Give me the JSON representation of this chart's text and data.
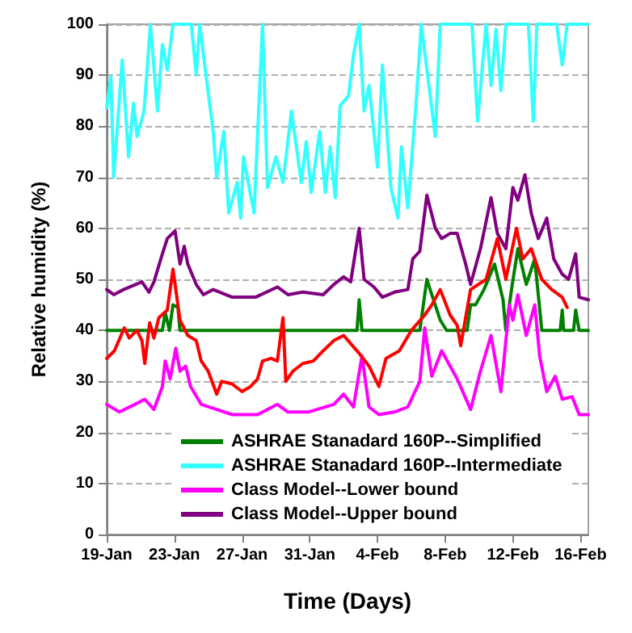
{
  "chart_data": {
    "type": "line",
    "xlabel": "Time (Days)",
    "ylabel": "Relative humidity (%)",
    "xlim": [
      "--01-19",
      "--02-16T11:00"
    ],
    "xticks": [
      {
        "value": "--01-19",
        "label": "19-Jan"
      },
      {
        "value": "--01-23",
        "label": "23-Jan"
      },
      {
        "value": "--01-27",
        "label": "27-Jan"
      },
      {
        "value": "--01-31",
        "label": "31-Jan"
      },
      {
        "value": "--02-04",
        "label": "4-Feb"
      },
      {
        "value": "--02-08",
        "label": "8-Feb"
      },
      {
        "value": "--02-12",
        "label": "12-Feb"
      },
      {
        "value": "--02-16",
        "label": "16-Feb"
      }
    ],
    "ylim": [
      0,
      100
    ],
    "yticks": [
      0,
      10,
      20,
      30,
      40,
      50,
      60,
      70,
      80,
      90,
      100
    ],
    "grid": "y",
    "legend": "bottom",
    "marker": "none",
    "line_style": "solid",
    "series": [
      {
        "name": "ASHRAE Stanadard 160P--Simplified",
        "color": "#008000",
        "x": [
          "--01-19T00:00",
          "--01-22T07:00",
          "--01-22T11:00",
          "--01-22T17:00",
          "--01-22T22:00",
          "--01-23T05:00",
          "--01-23T08:00",
          "--02-02T19:00",
          "--02-02T22:00",
          "--02-03T02:00",
          "--02-06T12:00",
          "--02-06T22:00",
          "--02-07T05:00",
          "--02-07T17:00",
          "--02-08T02:00",
          "--02-09T07:00",
          "--02-09T12:00",
          "--02-09T19:00",
          "--02-10T07:00",
          "--02-10T22:00",
          "--02-11T10:00",
          "--02-11T14:00",
          "--02-11T22:00",
          "--02-12T07:00",
          "--02-12T19:00",
          "--02-13T07:00",
          "--02-13T17:00",
          "--02-14T19:00",
          "--02-14T22:00",
          "--02-15T00:00",
          "--02-15T14:00",
          "--02-15T17:00",
          "--02-15T22:00",
          "--02-16T11:00"
        ],
        "values": [
          40,
          40,
          43.5,
          40,
          45,
          44.5,
          40,
          40,
          46,
          40,
          40,
          50,
          47,
          42,
          40,
          40,
          45,
          45,
          48,
          53,
          46,
          40,
          48,
          56,
          49,
          54,
          40,
          40,
          44,
          40,
          40,
          44,
          40,
          40
        ]
      },
      {
        "name": "ASHRAE Stanadard 160P--Intermediate",
        "color": "#33ffff",
        "x": [
          "--01-19T00:00",
          "--01-19T06:00",
          "--01-19T10:00",
          "--01-19T22:00",
          "--01-20T07:00",
          "--01-20T14:00",
          "--01-20T19:00",
          "--01-21T05:00",
          "--01-21T14:00",
          "--01-22T00:00",
          "--01-22T07:00",
          "--01-22T14:00",
          "--01-22T22:00",
          "--01-24T00:00",
          "--01-24T07:00",
          "--01-24T12:00",
          "--01-24T19:00",
          "--01-25T07:00",
          "--01-25T12:00",
          "--01-25T22:00",
          "--01-26T05:00",
          "--01-26T17:00",
          "--01-26T22:00",
          "--01-27T02:00",
          "--01-27T17:00",
          "--01-28T05:00",
          "--01-28T12:00",
          "--01-29T00:00",
          "--01-29T10:00",
          "--01-29T22:00",
          "--01-30T12:00",
          "--01-30T19:00",
          "--01-31T02:00",
          "--01-31T14:00",
          "--01-31T22:00",
          "--02-01T05:00",
          "--02-01T12:00",
          "--02-01T19:00",
          "--02-02T07:00",
          "--02-02T14:00",
          "--02-02T22:00",
          "--02-03T05:00",
          "--02-03T12:00",
          "--02-04T00:00",
          "--02-04T07:00",
          "--02-04T19:00",
          "--02-05T05:00",
          "--02-05T10:00",
          "--02-05T19:00",
          "--02-06T07:00",
          "--02-06T14:00",
          "--02-07T10:00",
          "--02-07T17:00",
          "--02-09T14:00",
          "--02-09T22:00",
          "--02-10T10:00",
          "--02-10T17:00",
          "--02-11T00:00",
          "--02-11T07:00",
          "--02-11T14:00",
          "--02-12T22:00",
          "--02-13T05:00",
          "--02-13T10:00",
          "--02-14T14:00",
          "--02-14T22:00",
          "--02-15T05:00",
          "--02-16T11:00"
        ],
        "values": [
          83.5,
          89.7,
          70,
          93,
          74,
          84.5,
          78,
          83,
          100,
          83,
          96,
          91,
          100,
          100,
          90,
          100,
          92,
          79,
          70,
          79,
          63,
          69,
          62,
          74,
          63,
          100,
          68,
          74,
          69,
          83,
          69,
          77,
          67,
          79,
          67,
          76,
          66,
          84,
          86,
          94,
          100,
          83,
          88,
          72,
          92,
          68,
          62,
          76,
          64,
          85,
          100,
          78,
          100,
          100,
          81,
          100,
          88,
          99,
          87,
          100,
          100,
          81,
          100,
          100,
          92,
          100,
          100
        ]
      },
      {
        "name": "Class Model--Lower bound",
        "color": "#ff00ff",
        "x": [
          "--01-19T00:00",
          "--01-19T18:00",
          "--01-20T16:00",
          "--01-21T06:00",
          "--01-21T19:00",
          "--01-22T07:00",
          "--01-22T11:00",
          "--01-22T18:00",
          "--01-23T02:00",
          "--01-23T08:00",
          "--01-23T16:00",
          "--01-23T23:00",
          "--01-24T14:00",
          "--01-25T12:00",
          "--01-26T10:00",
          "--01-27T22:00",
          "--01-29T02:00",
          "--01-29T17:00",
          "--01-30T22:00",
          "--02-01T10:00",
          "--02-02T00:00",
          "--02-02T14:00",
          "--02-03T02:00",
          "--02-03T12:00",
          "--02-04T02:00",
          "--02-05T00:00",
          "--02-05T19:00",
          "--02-06T12:00",
          "--02-06T19:00",
          "--02-07T05:00",
          "--02-07T19:00",
          "--02-08T07:00",
          "--02-08T17:00",
          "--02-09T12:00",
          "--02-10T02:00",
          "--02-10T17:00",
          "--02-11T07:00",
          "--02-11T19:00",
          "--02-12T00:00",
          "--02-12T07:00",
          "--02-12T19:00",
          "--02-13T07:00",
          "--02-13T14:00",
          "--02-14T00:00",
          "--02-14T12:00",
          "--02-14T22:00",
          "--02-15T12:00",
          "--02-15T22:00",
          "--02-16T11:00"
        ],
        "values": [
          25.5,
          24,
          25.5,
          26.5,
          24.5,
          29,
          34,
          30.5,
          36.5,
          32,
          33,
          29,
          25.5,
          24.5,
          23.5,
          23.5,
          25.5,
          24,
          24,
          25.5,
          27.5,
          25,
          35,
          25,
          23.5,
          24,
          25,
          30,
          40.5,
          31,
          36,
          33,
          30.5,
          24.5,
          32,
          39,
          28,
          45,
          42,
          47,
          39,
          45,
          35,
          28,
          31,
          26.5,
          27,
          23.5,
          23.5
        ]
      },
      {
        "name": "Class Model--Upper bound",
        "color": "#800080",
        "x": [
          "--01-19T00:00",
          "--01-19T10:00",
          "--01-20T00:00",
          "--01-21T02:00",
          "--01-21T12:00",
          "--01-21T19:00",
          "--01-22T07:00",
          "--01-22T14:00",
          "--01-23T01:00",
          "--01-23T08:00",
          "--01-23T14:00",
          "--01-23T19:00",
          "--01-24T07:00",
          "--01-24T17:00",
          "--01-25T07:00",
          "--01-26T10:00",
          "--01-27T19:00",
          "--01-29T02:00",
          "--01-29T17:00",
          "--01-30T14:00",
          "--01-31T19:00",
          "--02-01T10:00",
          "--02-02T00:00",
          "--02-02T10:00",
          "--02-02T22:00",
          "--02-03T05:00",
          "--02-03T19:00",
          "--02-04T07:00",
          "--02-05T00:00",
          "--02-05T19:00",
          "--02-06T02:00",
          "--02-06T12:00",
          "--02-06T22:00",
          "--02-07T10:00",
          "--02-07T19:00",
          "--02-08T07:00",
          "--02-08T17:00",
          "--02-09T05:00",
          "--02-09T12:00",
          "--02-10T02:00",
          "--02-10T17:00",
          "--02-11T02:00",
          "--02-11T14:00",
          "--02-12T00:00",
          "--02-12T07:00",
          "--02-12T17:00",
          "--02-13T02:00",
          "--02-13T12:00",
          "--02-14T00:00",
          "--02-14T10:00",
          "--02-14T22:00",
          "--02-15T07:00",
          "--02-15T17:00",
          "--02-15T22:00",
          "--02-16T11:00"
        ],
        "values": [
          48,
          47,
          48,
          49.5,
          47.5,
          49.5,
          55,
          58,
          59.5,
          53,
          56.5,
          53,
          49,
          47,
          48,
          46.5,
          46.5,
          48.5,
          47,
          47.5,
          47,
          49,
          50.5,
          49.5,
          60,
          50,
          48.5,
          46.5,
          47.5,
          48,
          54,
          55.5,
          66.5,
          60,
          58,
          59,
          59,
          53,
          49,
          56,
          66,
          59,
          56,
          68,
          65.5,
          70.5,
          63,
          58,
          62,
          54,
          51,
          50,
          55,
          46.5,
          46
        ]
      },
      {
        "color": "#ff0000",
        "x": [
          "--01-19T00:00",
          "--01-19T11:00",
          "--01-20T01:00",
          "--01-20T08:00",
          "--01-20T19:00",
          "--01-21T02:00",
          "--01-21T06:00",
          "--01-21T13:00",
          "--01-21T19:00",
          "--01-22T02:00",
          "--01-22T14:00",
          "--01-22T22:00",
          "--01-23T08:00",
          "--01-23T19:00",
          "--01-24T07:00",
          "--01-24T14:00",
          "--01-25T00:00",
          "--01-25T12:00",
          "--01-25T19:00",
          "--01-26T10:00",
          "--01-27T00:00",
          "--01-27T12:00",
          "--01-27T22:00",
          "--01-28T05:00",
          "--01-28T17:00",
          "--01-29T02:00",
          "--01-29T10:00",
          "--01-29T14:00",
          "--01-30T00:00",
          "--01-30T14:00",
          "--01-31T05:00",
          "--01-31T19:00",
          "--02-01T10:00",
          "--02-02T00:00",
          "--02-02T22:00",
          "--02-03T12:00",
          "--02-04T02:00",
          "--02-04T12:00",
          "--02-05T07:00",
          "--02-06T00:00",
          "--02-06T19:00",
          "--02-07T05:00",
          "--02-07T17:00",
          "--02-08T07:00",
          "--02-08T17:00",
          "--02-08T22:00",
          "--02-09T12:00",
          "--02-10T10:00",
          "--02-11T02:00",
          "--02-11T14:00",
          "--02-12T05:00",
          "--02-12T14:00",
          "--02-13T02:00",
          "--02-13T17:00",
          "--02-14T07:00",
          "--02-14T22:00",
          "--02-15T05:00"
        ],
        "values": [
          34.5,
          36,
          40.5,
          38.5,
          40,
          38,
          33.5,
          41.5,
          38.5,
          42.5,
          44,
          52,
          42,
          39,
          38,
          34,
          32,
          27.5,
          30,
          29.5,
          28,
          29,
          30.5,
          34,
          34.5,
          34,
          42.5,
          30,
          32,
          33.5,
          34,
          36,
          38,
          39,
          35.5,
          33,
          29,
          34.5,
          36,
          40,
          43,
          45,
          48,
          43,
          41,
          37,
          48,
          50,
          58,
          50,
          60,
          54,
          56,
          50,
          48,
          46.5,
          44.5
        ]
      }
    ]
  }
}
